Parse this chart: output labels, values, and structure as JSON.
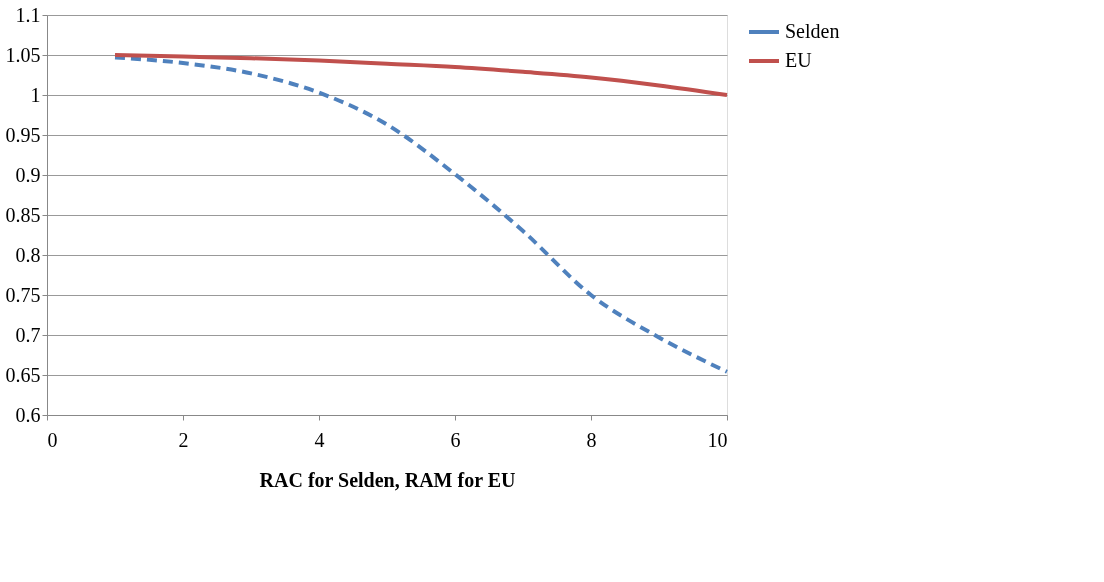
{
  "chart_data": {
    "type": "line",
    "xlabel": "RAC for Selden,  RAM for EU",
    "xlim": [
      0,
      10
    ],
    "xticks": [
      0,
      2,
      4,
      6,
      8,
      10
    ],
    "ylim": [
      0.6,
      1.1
    ],
    "yticks": [
      0.6,
      0.65,
      0.7,
      0.75,
      0.8,
      0.85,
      0.9,
      0.95,
      1,
      1.05,
      1.1
    ],
    "grid": "y",
    "legend": "right",
    "marker": "none",
    "series": [
      {
        "name": "Selden",
        "color": "#4f81bd",
        "line_style": "dashed",
        "x": [
          1,
          2,
          3,
          4,
          5,
          6,
          7,
          8,
          9,
          10
        ],
        "values": [
          1.047,
          1.04,
          1.027,
          1.003,
          0.963,
          0.901,
          0.83,
          0.75,
          0.697,
          0.654
        ]
      },
      {
        "name": "EU",
        "color": "#c0504d",
        "line_style": "solid",
        "x": [
          1,
          2,
          3,
          4,
          5,
          6,
          7,
          8,
          9,
          10
        ],
        "values": [
          1.05,
          1.048,
          1.046,
          1.043,
          1.039,
          1.035,
          1.029,
          1.022,
          1.012,
          1.0
        ]
      }
    ]
  }
}
